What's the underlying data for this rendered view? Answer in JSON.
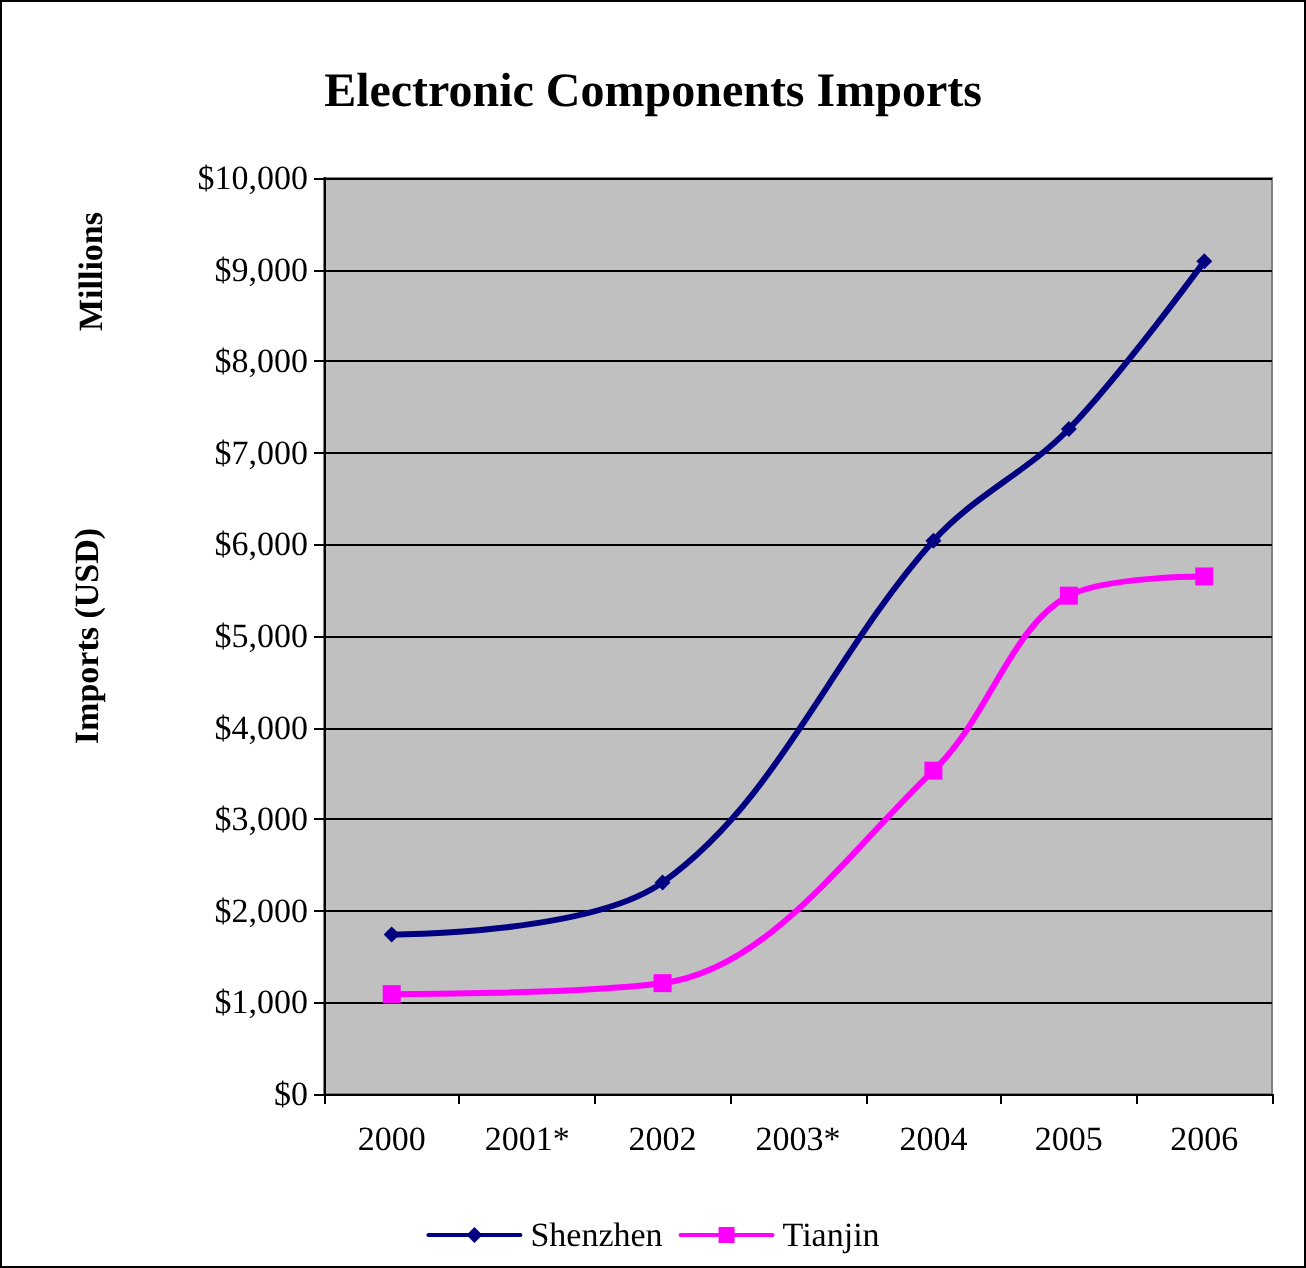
{
  "chart_data": {
    "type": "line",
    "title": "Electronic Components Imports",
    "ylabel": "Imports (USD)",
    "annotations": [
      "Millions"
    ],
    "categories": [
      "2000",
      "2001*",
      "2002",
      "2003*",
      "2004",
      "2005",
      "2006"
    ],
    "series": [
      {
        "name": "Shenzhen",
        "color": "#000080",
        "marker": "diamond",
        "values": [
          1740,
          null,
          2310,
          null,
          6040,
          7260,
          9090
        ]
      },
      {
        "name": "Tianjin",
        "color": "#ff00ff",
        "marker": "square",
        "values": [
          1090,
          null,
          1210,
          null,
          3530,
          5440,
          5650
        ]
      }
    ],
    "ylim": [
      0,
      10000
    ],
    "yticks": [
      {
        "value": 0,
        "label": "$0"
      },
      {
        "value": 1000,
        "label": "$1,000"
      },
      {
        "value": 2000,
        "label": "$2,000"
      },
      {
        "value": 3000,
        "label": "$3,000"
      },
      {
        "value": 4000,
        "label": "$4,000"
      },
      {
        "value": 5000,
        "label": "$5,000"
      },
      {
        "value": 6000,
        "label": "$6,000"
      },
      {
        "value": 7000,
        "label": "$7,000"
      },
      {
        "value": 8000,
        "label": "$8,000"
      },
      {
        "value": 9000,
        "label": "$9,000"
      },
      {
        "value": 10000,
        "label": "$10,000"
      }
    ],
    "grid": "y",
    "legend": "bottom",
    "line_style": "solid"
  }
}
